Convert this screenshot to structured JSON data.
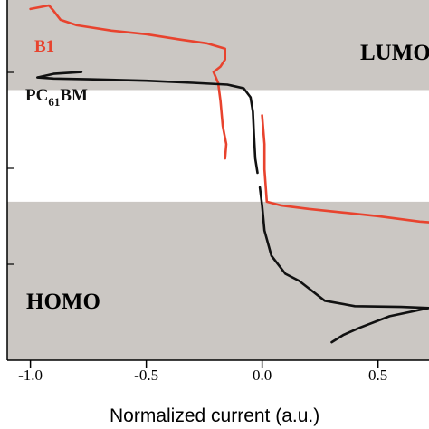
{
  "chart_data": {
    "type": "line",
    "xlabel": "Normalized current (a.u.)",
    "xlim": [
      -1.1,
      0.72
    ],
    "ylim": [
      0,
      1
    ],
    "x_ticks": [
      -1.0,
      -0.5,
      0.0,
      0.5
    ],
    "x_tick_labels": [
      "-1.0",
      "-0.5",
      "0.0",
      "0.5"
    ],
    "bands": [
      {
        "name": "LUMO",
        "label": "LUMO",
        "from": 0.75,
        "to": 1.0,
        "color": "#cbc7c3"
      },
      {
        "name": "gap",
        "label": "",
        "from": 0.44,
        "to": 0.75,
        "color": "#ffffff"
      },
      {
        "name": "HOMO",
        "label": "HOMO",
        "from": 0.0,
        "to": 0.44,
        "color": "#cbc7c3"
      }
    ],
    "series": [
      {
        "name": "B1",
        "label": "B1",
        "color": "#e8432e",
        "points": [
          [
            -1.0,
            0.975
          ],
          [
            -0.92,
            0.985
          ],
          [
            -0.9,
            0.97
          ],
          [
            -0.87,
            0.945
          ],
          [
            -0.8,
            0.93
          ],
          [
            -0.65,
            0.915
          ],
          [
            -0.5,
            0.905
          ],
          [
            -0.35,
            0.89
          ],
          [
            -0.24,
            0.88
          ],
          [
            -0.16,
            0.865
          ],
          [
            -0.16,
            0.835
          ],
          [
            -0.18,
            0.815
          ],
          [
            -0.21,
            0.8
          ],
          [
            -0.19,
            0.77
          ],
          [
            -0.18,
            0.72
          ],
          [
            -0.17,
            0.65
          ],
          [
            -0.155,
            0.6
          ],
          [
            -0.16,
            0.56
          ]
        ]
      },
      {
        "name": "B1 reduction branch",
        "label": "",
        "color": "#e8432e",
        "points": [
          [
            0.0,
            0.68
          ],
          [
            0.01,
            0.6
          ],
          [
            0.01,
            0.53
          ],
          [
            0.02,
            0.44
          ],
          [
            0.08,
            0.43
          ],
          [
            0.2,
            0.42
          ],
          [
            0.35,
            0.41
          ],
          [
            0.5,
            0.4
          ],
          [
            0.62,
            0.39
          ],
          [
            0.68,
            0.385
          ],
          [
            0.72,
            0.383
          ]
        ]
      },
      {
        "name": "PC61BM",
        "label_main": "PC",
        "label_sub": "61",
        "label_end": "BM",
        "color": "#111111",
        "points": [
          [
            -0.78,
            0.8
          ],
          [
            -0.9,
            0.795
          ],
          [
            -0.97,
            0.785
          ],
          [
            -0.9,
            0.782
          ],
          [
            -0.75,
            0.78
          ],
          [
            -0.5,
            0.776
          ],
          [
            -0.3,
            0.77
          ],
          [
            -0.15,
            0.765
          ],
          [
            -0.08,
            0.755
          ],
          [
            -0.05,
            0.73
          ],
          [
            -0.04,
            0.69
          ],
          [
            -0.035,
            0.62
          ],
          [
            -0.03,
            0.56
          ],
          [
            -0.02,
            0.52
          ]
        ]
      },
      {
        "name": "PC61BM reduction branch",
        "label": "",
        "color": "#111111",
        "points": [
          [
            -0.01,
            0.48
          ],
          [
            0.0,
            0.43
          ],
          [
            0.01,
            0.36
          ],
          [
            0.04,
            0.29
          ],
          [
            0.1,
            0.24
          ],
          [
            0.16,
            0.22
          ],
          [
            0.2,
            0.2
          ],
          [
            0.27,
            0.165
          ],
          [
            0.4,
            0.15
          ],
          [
            0.6,
            0.148
          ],
          [
            0.72,
            0.145
          ],
          [
            0.55,
            0.122
          ],
          [
            0.42,
            0.09
          ],
          [
            0.35,
            0.07
          ],
          [
            0.3,
            0.05
          ]
        ]
      }
    ]
  }
}
